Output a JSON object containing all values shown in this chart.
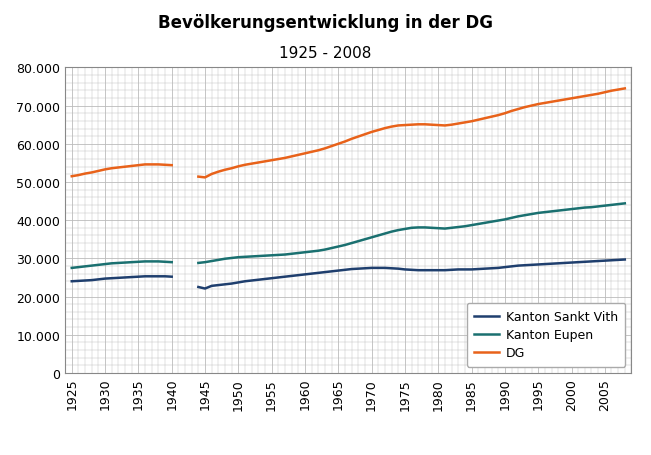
{
  "title": "Bevölkerungsentwicklung in der DG",
  "subtitle": "1925 - 2008",
  "background_color": "#ffffff",
  "grid_color": "#bbbbbb",
  "line_width": 1.8,
  "years_pre": [
    1925,
    1926,
    1927,
    1928,
    1929,
    1930,
    1931,
    1932,
    1933,
    1934,
    1935,
    1936,
    1937,
    1938,
    1939,
    1940
  ],
  "years_post": [
    1944,
    1945,
    1946,
    1947,
    1948,
    1949,
    1950,
    1951,
    1952,
    1953,
    1954,
    1955,
    1956,
    1957,
    1958,
    1959,
    1960,
    1961,
    1962,
    1963,
    1964,
    1965,
    1966,
    1967,
    1968,
    1969,
    1970,
    1971,
    1972,
    1973,
    1974,
    1975,
    1976,
    1977,
    1978,
    1979,
    1980,
    1981,
    1982,
    1983,
    1984,
    1985,
    1986,
    1987,
    1988,
    1989,
    1990,
    1991,
    1992,
    1993,
    1994,
    1995,
    1996,
    1997,
    1998,
    1999,
    2000,
    2001,
    2002,
    2003,
    2004,
    2005,
    2006,
    2007,
    2008
  ],
  "sankt_vith_pre": [
    24000,
    24100,
    24200,
    24300,
    24500,
    24700,
    24800,
    24900,
    25000,
    25100,
    25200,
    25300,
    25300,
    25300,
    25300,
    25200
  ],
  "eupen_pre": [
    27500,
    27700,
    27900,
    28100,
    28300,
    28500,
    28700,
    28800,
    28900,
    29000,
    29100,
    29200,
    29200,
    29200,
    29100,
    29000
  ],
  "dg_pre": [
    51500,
    51800,
    52200,
    52500,
    52900,
    53300,
    53600,
    53800,
    54000,
    54200,
    54400,
    54600,
    54600,
    54600,
    54500,
    54400
  ],
  "sankt_vith_post": [
    22500,
    22100,
    22800,
    23000,
    23200,
    23400,
    23700,
    24000,
    24200,
    24400,
    24600,
    24800,
    25000,
    25200,
    25400,
    25600,
    25800,
    26000,
    26200,
    26400,
    26600,
    26800,
    27000,
    27200,
    27300,
    27400,
    27500,
    27500,
    27500,
    27400,
    27300,
    27100,
    27000,
    26900,
    26900,
    26900,
    26900,
    26900,
    27000,
    27100,
    27100,
    27100,
    27200,
    27300,
    27400,
    27500,
    27700,
    27900,
    28100,
    28200,
    28300,
    28400,
    28500,
    28600,
    28700,
    28800,
    28900,
    29000,
    29100,
    29200,
    29300,
    29400,
    29500,
    29600,
    29700
  ],
  "eupen_post": [
    28800,
    29000,
    29300,
    29600,
    29900,
    30100,
    30300,
    30400,
    30500,
    30600,
    30700,
    30800,
    30900,
    31000,
    31200,
    31400,
    31600,
    31800,
    32000,
    32300,
    32700,
    33100,
    33500,
    34000,
    34500,
    35000,
    35500,
    36000,
    36500,
    37000,
    37400,
    37700,
    38000,
    38100,
    38100,
    38000,
    37900,
    37800,
    38000,
    38200,
    38400,
    38700,
    39000,
    39300,
    39600,
    39900,
    40200,
    40600,
    41000,
    41300,
    41600,
    41900,
    42100,
    42300,
    42500,
    42700,
    42900,
    43100,
    43300,
    43400,
    43600,
    43800,
    44000,
    44200,
    44400
  ],
  "dg_post": [
    51400,
    51200,
    52100,
    52700,
    53200,
    53600,
    54100,
    54500,
    54800,
    55100,
    55400,
    55700,
    56000,
    56300,
    56700,
    57100,
    57500,
    57900,
    58300,
    58800,
    59400,
    60000,
    60600,
    61300,
    61900,
    62500,
    63100,
    63600,
    64100,
    64500,
    64800,
    64900,
    65000,
    65100,
    65100,
    65000,
    64900,
    64800,
    65000,
    65300,
    65600,
    65900,
    66300,
    66700,
    67100,
    67500,
    68000,
    68600,
    69100,
    69600,
    70000,
    70400,
    70700,
    71000,
    71300,
    71600,
    71900,
    72200,
    72500,
    72800,
    73100,
    73500,
    73900,
    74200,
    74500
  ],
  "legend_labels": [
    "Kanton Sankt Vith",
    "Kanton Eupen",
    "DG"
  ],
  "colors": {
    "sankt_vith": "#1f3f6e",
    "eupen": "#1a7070",
    "dg": "#e8621a"
  },
  "ylim": [
    0,
    80000
  ],
  "yticks": [
    0,
    10000,
    20000,
    30000,
    40000,
    50000,
    60000,
    70000,
    80000
  ],
  "ytick_labels": [
    "0",
    "10.000",
    "20.000",
    "30.000",
    "40.000",
    "50.000",
    "60.000",
    "70.000",
    "80.000"
  ],
  "xtick_years": [
    1925,
    1930,
    1935,
    1940,
    1945,
    1950,
    1955,
    1960,
    1965,
    1970,
    1975,
    1980,
    1985,
    1990,
    1995,
    2000,
    2005
  ],
  "xlim": [
    1924,
    2009
  ]
}
